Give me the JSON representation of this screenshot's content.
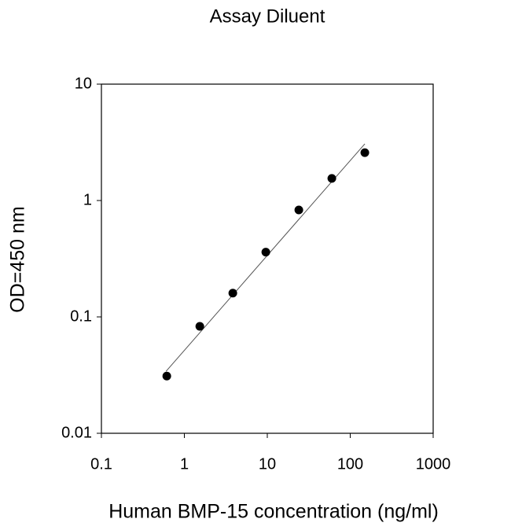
{
  "chart_data": {
    "type": "scatter",
    "title": "Assay Diluent",
    "x_label": "Human BMP-15 concentration (ng/ml)",
    "y_label": "OD=450 nm",
    "x": [
      0.614,
      1.536,
      3.84,
      9.6,
      24,
      60,
      150
    ],
    "y": [
      0.031,
      0.083,
      0.16,
      0.36,
      0.83,
      1.55,
      2.58
    ],
    "color": "#000000",
    "fit_line": {
      "x": [
        0.6,
        150
      ],
      "y": [
        0.034,
        3.07
      ],
      "color": "#555555"
    },
    "xlim": [
      0.1,
      1000
    ],
    "ylim": [
      0.01,
      10
    ],
    "xticks": [
      0.1,
      1,
      10,
      100,
      1000
    ],
    "yticks": [
      0.01,
      0.1,
      1,
      10
    ],
    "xscale": "log",
    "yscale": "log",
    "grid": false
  }
}
